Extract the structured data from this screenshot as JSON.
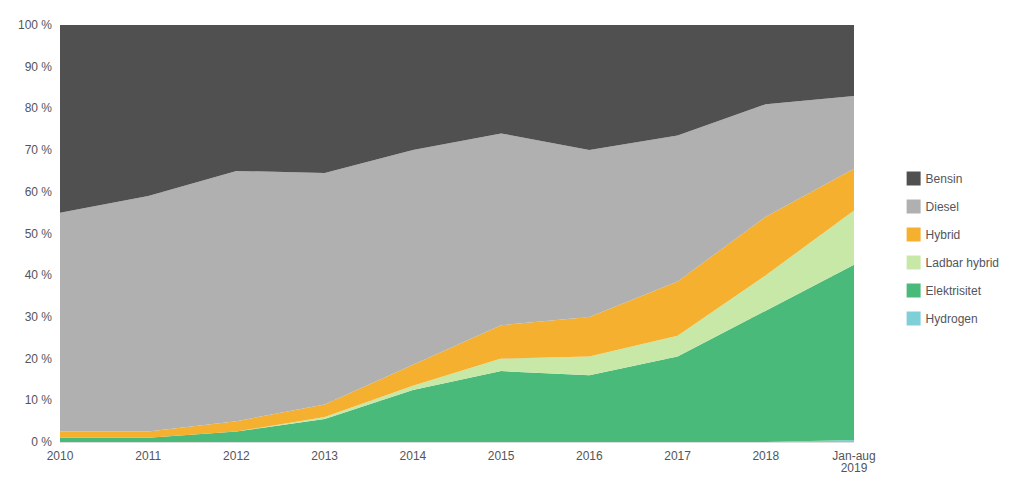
{
  "chart_data": {
    "type": "area",
    "stacked": true,
    "categories": [
      "2010",
      "2011",
      "2012",
      "2013",
      "2014",
      "2015",
      "2016",
      "2017",
      "2018",
      "Jan-aug\n2019"
    ],
    "series": [
      {
        "name": "Hydrogen",
        "color": "#7ecfd8",
        "values": [
          0.0,
          0.0,
          0.0,
          0.0,
          0.0,
          0.0,
          0.0,
          0.0,
          0.0,
          0.5
        ]
      },
      {
        "name": "Elektrisitet",
        "color": "#4aba7a",
        "values": [
          1.0,
          1.0,
          2.5,
          5.5,
          12.5,
          17.0,
          16.0,
          20.5,
          31.5,
          42.0
        ]
      },
      {
        "name": "Ladbar hybrid",
        "color": "#c8e8a8",
        "values": [
          0.0,
          0.0,
          0.0,
          0.5,
          1.0,
          3.0,
          4.5,
          5.0,
          8.5,
          13.0
        ]
      },
      {
        "name": "Hybrid",
        "color": "#f5b030",
        "values": [
          1.5,
          1.5,
          2.5,
          3.0,
          5.0,
          8.0,
          9.5,
          13.0,
          14.0,
          10.0
        ]
      },
      {
        "name": "Diesel",
        "color": "#b0b0b0",
        "values": [
          52.5,
          56.5,
          60.0,
          55.5,
          51.5,
          46.0,
          40.0,
          35.0,
          27.0,
          17.5
        ]
      },
      {
        "name": "Bensin",
        "color": "#505050",
        "values": [
          45.0,
          41.0,
          35.0,
          35.5,
          30.0,
          26.0,
          30.0,
          26.5,
          19.0,
          17.0
        ]
      }
    ],
    "ylim": [
      0,
      100
    ],
    "yticks": [
      {
        "value": 0,
        "label": "0 %"
      },
      {
        "value": 10,
        "label": "10 %"
      },
      {
        "value": 20,
        "label": "20 %"
      },
      {
        "value": 30,
        "label": "30 %"
      },
      {
        "value": 40,
        "label": "40 %"
      },
      {
        "value": 50,
        "label": "50 %"
      },
      {
        "value": 60,
        "label": "60 %"
      },
      {
        "value": 70,
        "label": "70 %"
      },
      {
        "value": 80,
        "label": "80 %"
      },
      {
        "value": 90,
        "label": "90 %"
      },
      {
        "value": 100,
        "label": "100 %"
      }
    ],
    "grid": true,
    "legend": "right"
  }
}
